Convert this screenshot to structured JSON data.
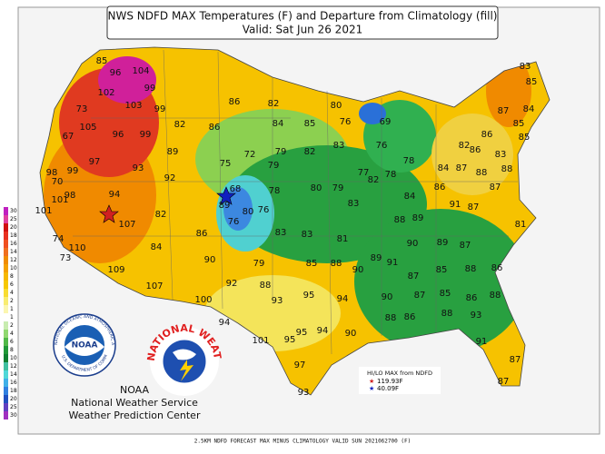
{
  "header": {
    "title": "NWS NDFD MAX Temperatures (F) and Departure from Climatology (fill)",
    "valid": "Valid: Sat Jun 26 2021"
  },
  "colorbar": {
    "above": [
      30,
      25,
      20,
      18,
      16,
      14,
      12,
      10,
      8,
      6,
      4,
      2,
      1
    ],
    "below": [
      1,
      2,
      4,
      6,
      8,
      10,
      12,
      14,
      16,
      18,
      20,
      25,
      30
    ]
  },
  "map_labels": [
    85,
    96,
    104,
    102,
    99,
    73,
    103,
    99,
    105,
    82,
    86,
    67,
    96,
    99,
    89,
    86,
    82,
    80,
    84,
    85,
    76,
    69,
    83,
    85,
    87,
    84,
    86,
    85,
    85,
    82,
    79,
    82,
    83,
    76,
    78,
    84,
    86,
    83,
    75,
    72,
    79,
    77,
    78,
    87,
    88,
    88,
    86,
    98,
    99,
    97,
    93,
    92,
    70,
    98,
    94,
    68,
    78,
    80,
    79,
    82,
    84,
    87,
    101,
    101,
    89,
    80,
    76,
    83,
    91,
    87,
    88,
    89,
    81,
    107,
    82,
    76,
    83,
    83,
    81,
    86,
    74,
    110,
    84,
    89,
    90,
    89,
    87,
    73,
    90,
    79,
    85,
    88,
    90,
    87,
    85,
    88,
    86,
    109,
    107,
    92,
    88,
    91,
    88,
    100,
    93,
    95,
    94,
    90,
    87,
    85,
    86,
    94,
    95,
    94,
    90,
    88,
    86,
    88,
    93,
    101,
    95,
    91,
    97,
    87,
    87,
    93
  ],
  "extremes": {
    "title": "HI/LO MAX from NDFD",
    "high": "119.93F",
    "low": "40.09F"
  },
  "logos": {
    "noaa_center": "NOAA",
    "noaa_ring": "NATIONAL OCEANIC AND ATMOSPHERIC ADMINISTRATION",
    "noaa_ring_bottom": "U.S. DEPARTMENT OF COMMERCE",
    "nws_ring": "NATIONAL WEATHER SERVICE"
  },
  "agency": {
    "line1": "NOAA",
    "line2": "National Weather Service",
    "line3": "Weather Prediction Center"
  },
  "footer": "2.5KM NDFD FORECAST MAX MINUS CLIMATOLOGY VALID SUN 2021062700 (F)"
}
